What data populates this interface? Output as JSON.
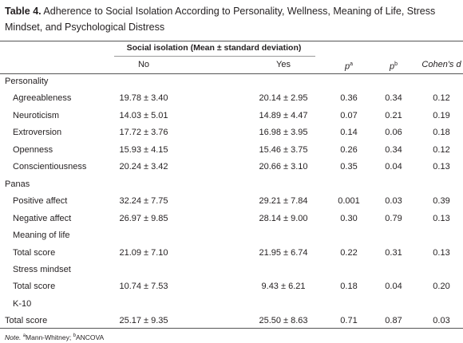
{
  "title": {
    "label": "Table 4.",
    "text": "Adherence to Social Isolation According to Personality, Wellness, Meaning of Life, Stress Mindset, and Psychological Distress"
  },
  "table": {
    "group_header": "Social isolation (Mean ± standard deviation)",
    "columns": [
      {
        "text": "No"
      },
      {
        "text": "Yes"
      },
      {
        "text": "p",
        "sup": "a"
      },
      {
        "text": "p",
        "sup": "b"
      },
      {
        "text": "Cohen's d"
      }
    ],
    "rows": [
      {
        "label": "Personality",
        "indent": false,
        "cells": []
      },
      {
        "label": "Agreeableness",
        "indent": true,
        "cells": [
          "19.78 ± 3.40",
          "20.14 ± 2.95",
          "0.36",
          "0.34",
          "0.12"
        ]
      },
      {
        "label": "Neuroticism",
        "indent": true,
        "cells": [
          "14.03 ± 5.01",
          "14.89 ± 4.47",
          "0.07",
          "0.21",
          "0.19"
        ]
      },
      {
        "label": "Extroversion",
        "indent": true,
        "cells": [
          "17.72 ± 3.76",
          "16.98 ± 3.95",
          "0.14",
          "0.06",
          "0.18"
        ]
      },
      {
        "label": "Openness",
        "indent": true,
        "cells": [
          "15.93 ± 4.15",
          "15.46 ± 3.75",
          "0.26",
          "0.34",
          "0.12"
        ]
      },
      {
        "label": "Conscientiousness",
        "indent": true,
        "cells": [
          "20.24 ± 3.42",
          "20.66 ± 3.10",
          "0.35",
          "0.04",
          "0.13"
        ]
      },
      {
        "label": "Panas",
        "indent": false,
        "cells": []
      },
      {
        "label": "Positive affect",
        "indent": true,
        "cells": [
          "32.24 ± 7.75",
          "29.21 ± 7.84",
          "0.001",
          "0.03",
          "0.39"
        ]
      },
      {
        "label": "Negative affect",
        "indent": true,
        "cells": [
          "26.97 ± 9.85",
          "28.14 ± 9.00",
          "0.30",
          "0.79",
          "0.13"
        ]
      },
      {
        "label": "Meaning of life",
        "indent": true,
        "cells": []
      },
      {
        "label": "Total score",
        "indent": true,
        "cells": [
          "21.09 ± 7.10",
          "21.95 ± 6.74",
          "0.22",
          "0.31",
          "0.13"
        ]
      },
      {
        "label": "Stress mindset",
        "indent": true,
        "cells": []
      },
      {
        "label": "Total score",
        "indent": true,
        "cells": [
          "10.74 ± 7.53",
          "9.43 ± 6.21",
          "0.18",
          "0.04",
          "0.20"
        ]
      },
      {
        "label": "K-10",
        "indent": true,
        "cells": []
      },
      {
        "label": "Total score",
        "indent": false,
        "cells": [
          "25.17 ± 9.35",
          "25.50 ± 8.63",
          "0.71",
          "0.87",
          "0.03"
        ]
      }
    ]
  },
  "note": {
    "label": "Note.",
    "items": [
      {
        "sup": "a",
        "text": "Mann-Whitney;"
      },
      {
        "sup": "b",
        "text": "ANCOVA"
      }
    ]
  }
}
